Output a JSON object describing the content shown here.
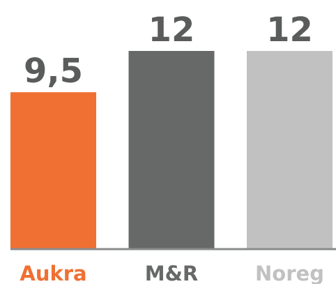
{
  "chart_data": {
    "type": "bar",
    "categories": [
      "Aukra",
      "M&R",
      "Noreg"
    ],
    "values": [
      9.5,
      12,
      12
    ],
    "value_labels": [
      "9,5",
      "12",
      "12"
    ],
    "colors": [
      "#f07033",
      "#666968",
      "#c0c1c0"
    ]
  }
}
